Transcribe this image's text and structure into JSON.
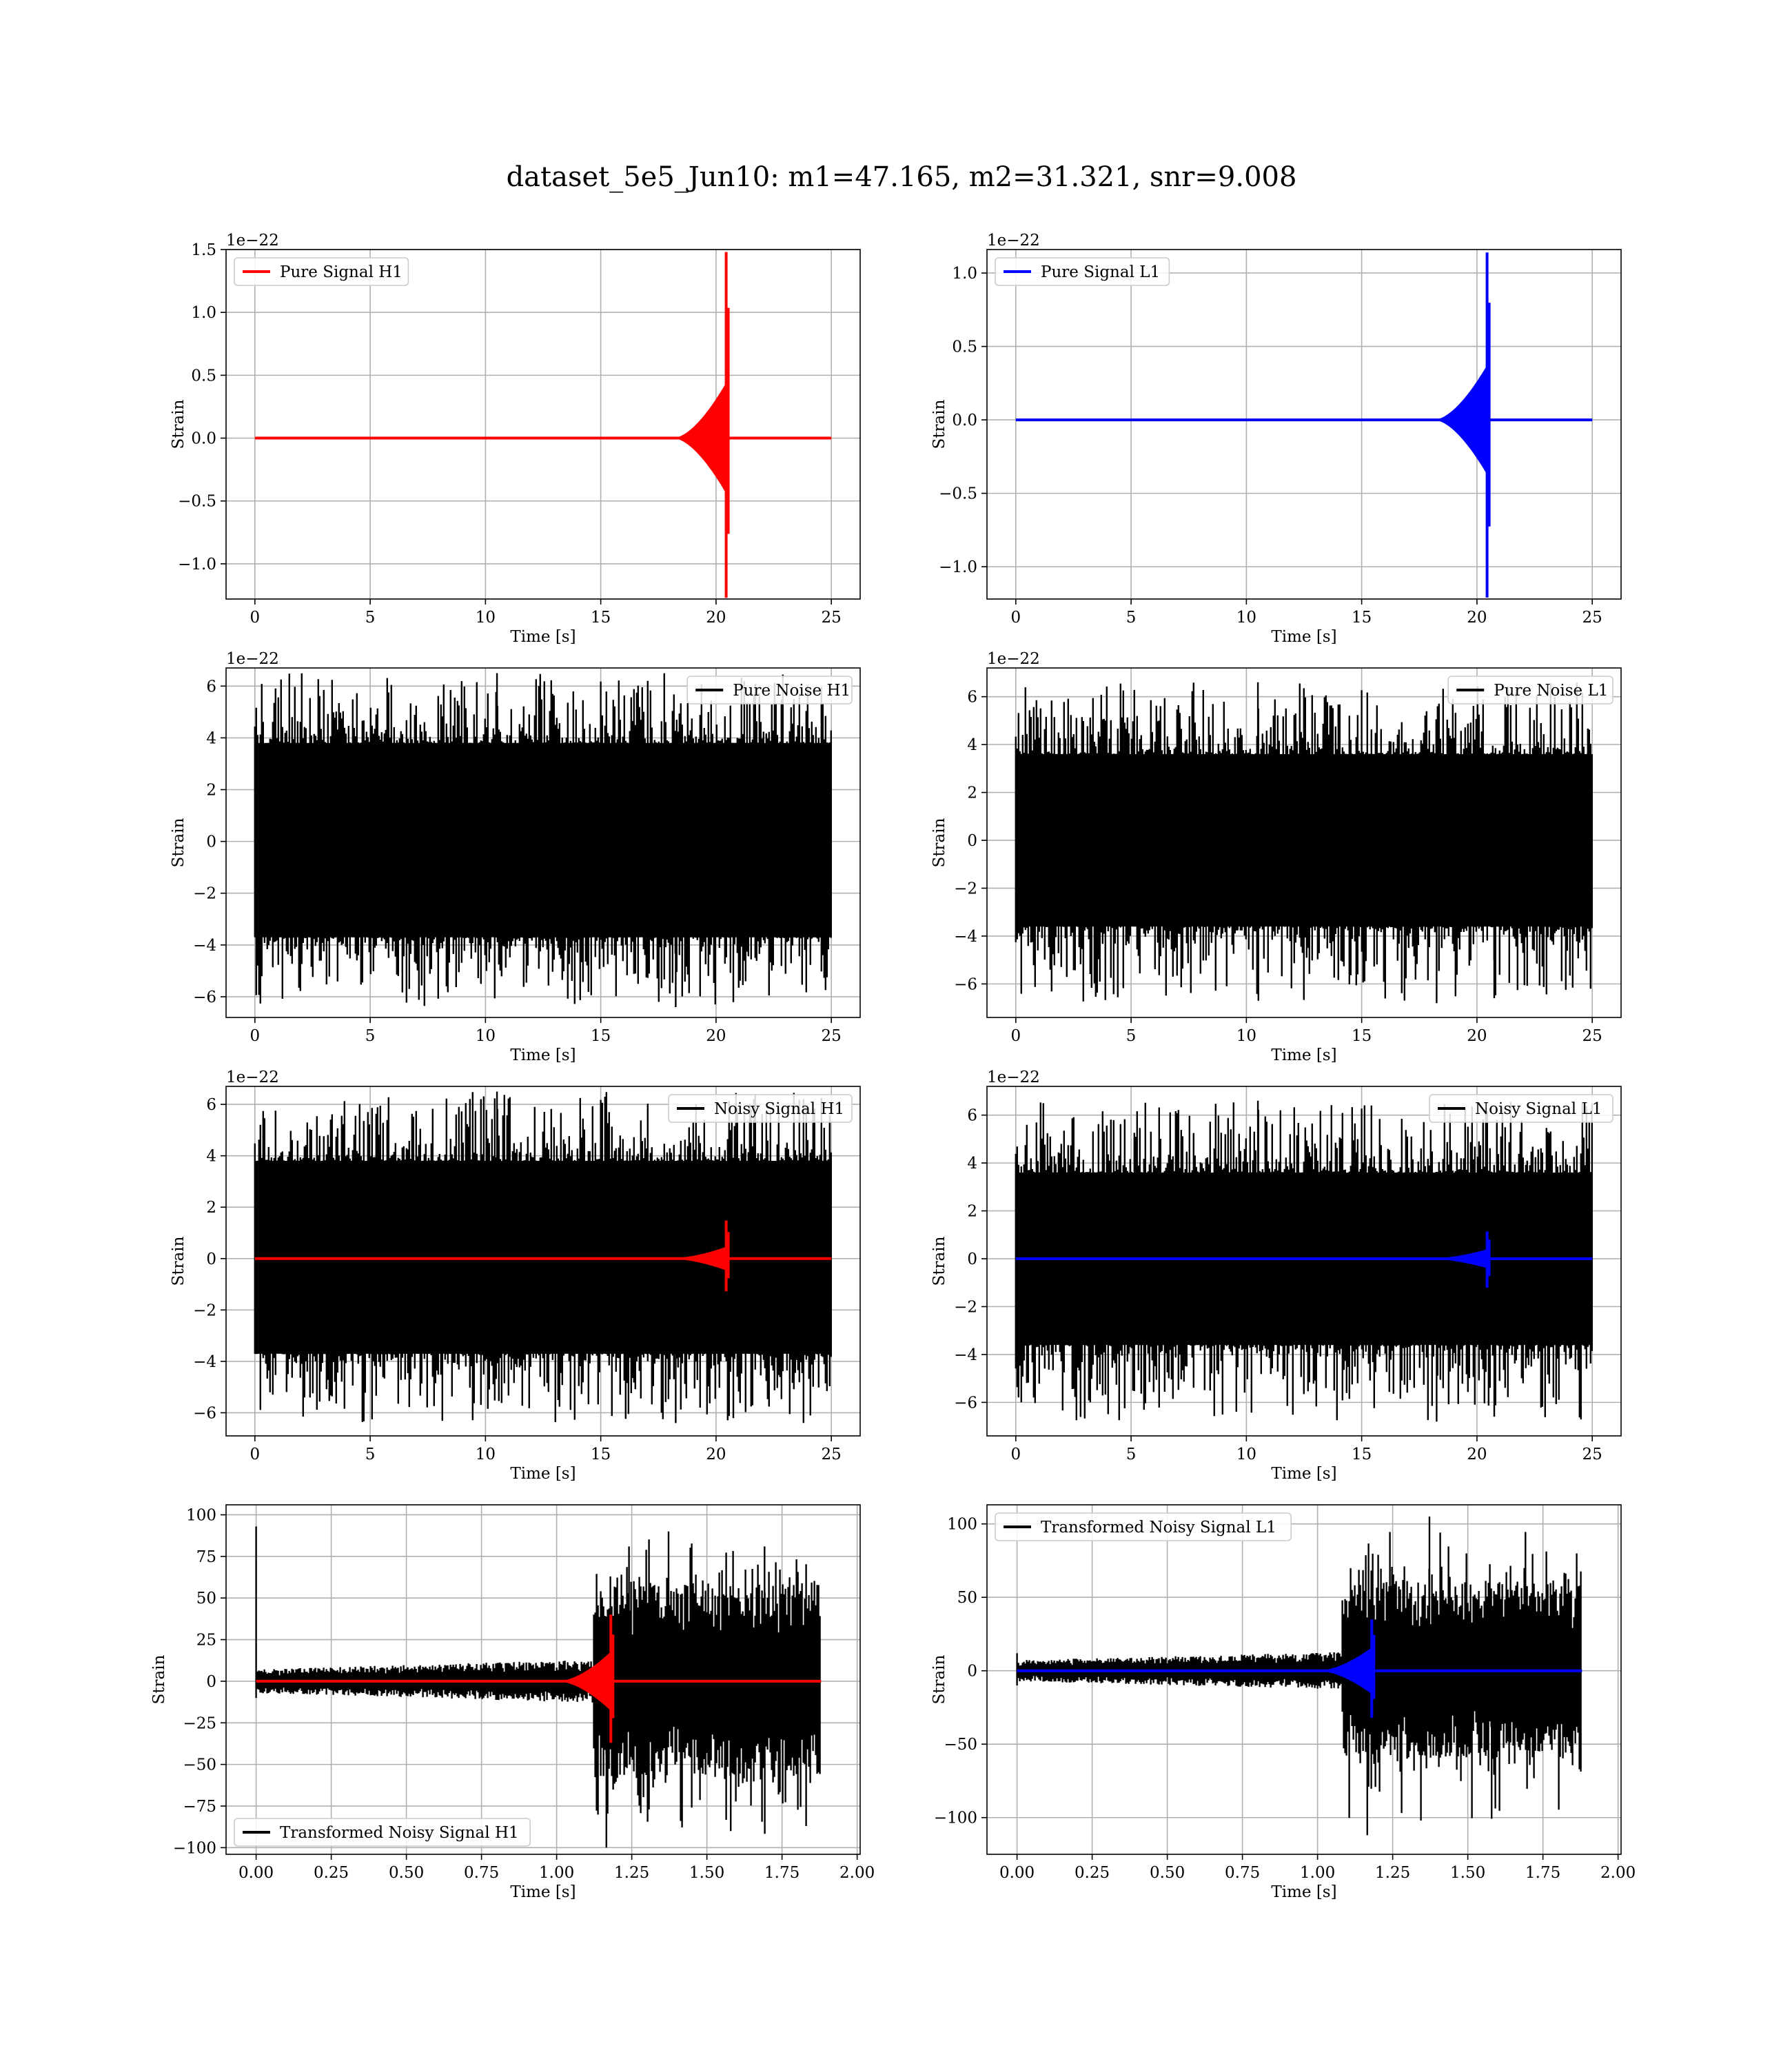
{
  "figure": {
    "title": "dataset_5e5_Jun10: m1=47.165, m2=31.321, snr=9.008"
  },
  "colors": {
    "red": "#ff0000",
    "blue": "#0000ff",
    "black": "#000000",
    "grid": "#b0b0b0"
  },
  "chart_data": [
    {
      "id": "pure-signal-h1",
      "type": "line",
      "grid": true,
      "xlabel": "Time [s]",
      "ylabel": "Strain",
      "offset_label": "1e−22",
      "xlim": [
        -1.25,
        26.25
      ],
      "ylim": [
        -1.28,
        1.5
      ],
      "xticks": [
        0,
        5,
        10,
        15,
        20,
        25
      ],
      "xticklabels": [
        "0",
        "5",
        "10",
        "15",
        "20",
        "25"
      ],
      "yticks": [
        -1.0,
        -0.5,
        0.0,
        0.5,
        1.0,
        1.5
      ],
      "yticklabels": [
        "−1.0",
        "−0.5",
        "0.0",
        "0.5",
        "1.0",
        "1.5"
      ],
      "legend": {
        "loc": "upper-left",
        "entries": [
          {
            "label": "Pure Signal H1",
            "color": "#ff0000"
          }
        ]
      },
      "series": [
        {
          "name": "Pure Signal H1",
          "color": "#ff0000",
          "chirp": {
            "x_start": 0,
            "x_end": 25,
            "merger": 20.5,
            "env_peak": 0.45,
            "spike_top": 1.48,
            "spike_bottom": -1.27
          }
        }
      ]
    },
    {
      "id": "pure-signal-l1",
      "type": "line",
      "grid": true,
      "xlabel": "Time [s]",
      "ylabel": "Strain",
      "offset_label": "1e−22",
      "xlim": [
        -1.25,
        26.25
      ],
      "ylim": [
        -1.22,
        1.16
      ],
      "xticks": [
        0,
        5,
        10,
        15,
        20,
        25
      ],
      "xticklabels": [
        "0",
        "5",
        "10",
        "15",
        "20",
        "25"
      ],
      "yticks": [
        -1.0,
        -0.5,
        0.0,
        0.5,
        1.0
      ],
      "yticklabels": [
        "−1.0",
        "−0.5",
        "0.0",
        "0.5",
        "1.0"
      ],
      "legend": {
        "loc": "upper-left",
        "entries": [
          {
            "label": "Pure Signal L1",
            "color": "#0000ff"
          }
        ]
      },
      "series": [
        {
          "name": "Pure Signal L1",
          "color": "#0000ff",
          "chirp": {
            "x_start": 0,
            "x_end": 25,
            "merger": 20.5,
            "env_peak": 0.38,
            "spike_top": 1.14,
            "spike_bottom": -1.21
          }
        }
      ]
    },
    {
      "id": "pure-noise-h1",
      "type": "line",
      "grid": true,
      "xlabel": "Time [s]",
      "ylabel": "Strain",
      "offset_label": "1e−22",
      "xlim": [
        -1.25,
        26.25
      ],
      "ylim": [
        -6.8,
        6.7
      ],
      "xticks": [
        0,
        5,
        10,
        15,
        20,
        25
      ],
      "xticklabels": [
        "0",
        "5",
        "10",
        "15",
        "20",
        "25"
      ],
      "yticks": [
        -6,
        -4,
        -2,
        0,
        2,
        4,
        6
      ],
      "yticklabels": [
        "−6",
        "−4",
        "−2",
        "0",
        "2",
        "4",
        "6"
      ],
      "legend": {
        "loc": "upper-right",
        "entries": [
          {
            "label": "Pure Noise H1",
            "color": "#000000"
          }
        ]
      },
      "series": [
        {
          "name": "Pure Noise H1",
          "color": "#000000",
          "noise": {
            "x_start": 0,
            "x_end": 25,
            "band_top": 3.8,
            "band_bottom": -3.7,
            "peak_max": 6.5,
            "peak_min": -6.4
          }
        }
      ]
    },
    {
      "id": "pure-noise-l1",
      "type": "line",
      "grid": true,
      "xlabel": "Time [s]",
      "ylabel": "Strain",
      "offset_label": "1e−22",
      "xlim": [
        -1.25,
        26.25
      ],
      "ylim": [
        -7.4,
        7.2
      ],
      "xticks": [
        0,
        5,
        10,
        15,
        20,
        25
      ],
      "xticklabels": [
        "0",
        "5",
        "10",
        "15",
        "20",
        "25"
      ],
      "yticks": [
        -6,
        -4,
        -2,
        0,
        2,
        4,
        6
      ],
      "yticklabels": [
        "−6",
        "−4",
        "−2",
        "0",
        "2",
        "4",
        "6"
      ],
      "legend": {
        "loc": "upper-right",
        "entries": [
          {
            "label": "Pure Noise L1",
            "color": "#000000"
          }
        ]
      },
      "series": [
        {
          "name": "Pure Noise L1",
          "color": "#000000",
          "noise": {
            "x_start": 0,
            "x_end": 25,
            "band_top": 3.6,
            "band_bottom": -3.6,
            "peak_max": 6.6,
            "peak_min": -6.8
          }
        }
      ]
    },
    {
      "id": "noisy-signal-h1",
      "type": "line",
      "grid": true,
      "xlabel": "Time [s]",
      "ylabel": "Strain",
      "offset_label": "1e−22",
      "xlim": [
        -1.25,
        26.25
      ],
      "ylim": [
        -6.9,
        6.7
      ],
      "xticks": [
        0,
        5,
        10,
        15,
        20,
        25
      ],
      "xticklabels": [
        "0",
        "5",
        "10",
        "15",
        "20",
        "25"
      ],
      "yticks": [
        -6,
        -4,
        -2,
        0,
        2,
        4,
        6
      ],
      "yticklabels": [
        "−6",
        "−4",
        "−2",
        "0",
        "2",
        "4",
        "6"
      ],
      "legend": {
        "loc": "upper-right",
        "entries": [
          {
            "label": "Noisy Signal H1",
            "color": "#000000"
          }
        ]
      },
      "series": [
        {
          "name": "Noisy Signal H1",
          "color": "#000000",
          "noise": {
            "x_start": 0,
            "x_end": 25,
            "band_top": 3.8,
            "band_bottom": -3.7,
            "peak_max": 6.5,
            "peak_min": -6.4
          }
        },
        {
          "color": "#ff0000",
          "chirp": {
            "x_start": 0,
            "x_end": 25,
            "merger": 20.5,
            "env_peak": 0.45,
            "spike_top": 1.48,
            "spike_bottom": -1.27
          }
        }
      ]
    },
    {
      "id": "noisy-signal-l1",
      "type": "line",
      "grid": true,
      "xlabel": "Time [s]",
      "ylabel": "Strain",
      "offset_label": "1e−22",
      "xlim": [
        -1.25,
        26.25
      ],
      "ylim": [
        -7.4,
        7.2
      ],
      "xticks": [
        0,
        5,
        10,
        15,
        20,
        25
      ],
      "xticklabels": [
        "0",
        "5",
        "10",
        "15",
        "20",
        "25"
      ],
      "yticks": [
        -6,
        -4,
        -2,
        0,
        2,
        4,
        6
      ],
      "yticklabels": [
        "−6",
        "−4",
        "−2",
        "0",
        "2",
        "4",
        "6"
      ],
      "legend": {
        "loc": "upper-right",
        "entries": [
          {
            "label": "Noisy Signal L1",
            "color": "#000000"
          }
        ]
      },
      "series": [
        {
          "name": "Noisy Signal L1",
          "color": "#000000",
          "noise": {
            "x_start": 0,
            "x_end": 25,
            "band_top": 3.6,
            "band_bottom": -3.6,
            "peak_max": 6.6,
            "peak_min": -6.8
          }
        },
        {
          "color": "#0000ff",
          "chirp": {
            "x_start": 0,
            "x_end": 25,
            "merger": 20.5,
            "env_peak": 0.38,
            "spike_top": 1.14,
            "spike_bottom": -1.21
          }
        }
      ]
    },
    {
      "id": "transformed-h1",
      "type": "line",
      "grid": true,
      "xlabel": "Time [s]",
      "ylabel": "Strain",
      "offset_label": "",
      "xlim": [
        -0.1,
        2.01
      ],
      "ylim": [
        -104,
        106
      ],
      "xticks": [
        0.0,
        0.25,
        0.5,
        0.75,
        1.0,
        1.25,
        1.5,
        1.75,
        2.0
      ],
      "xticklabels": [
        "0.00",
        "0.25",
        "0.50",
        "0.75",
        "1.00",
        "1.25",
        "1.50",
        "1.75",
        "2.00"
      ],
      "yticks": [
        -100,
        -75,
        -50,
        -25,
        0,
        25,
        50,
        75,
        100
      ],
      "yticklabels": [
        "−100",
        "−75",
        "−50",
        "−25",
        "0",
        "25",
        "50",
        "75",
        "100"
      ],
      "legend": {
        "loc": "lower-left",
        "entries": [
          {
            "label": "Transformed Noisy Signal H1",
            "color": "#000000"
          }
        ]
      },
      "series": [
        {
          "name": "Transformed Noisy Signal H1",
          "color": "#000000",
          "whitened": {
            "x_start": 0.0,
            "x_end": 1.88,
            "onset": 1.12,
            "early_amp": 12,
            "late_amp": 58,
            "peak_max": 90,
            "peak_min": -100,
            "spike_x": 0.0,
            "spike_y": 93
          }
        },
        {
          "color": "#ff0000",
          "chirp": {
            "x_start": 0.0,
            "x_end": 1.88,
            "merger": 1.185,
            "env_peak": 18,
            "spike_top": 40,
            "spike_bottom": -37
          }
        }
      ]
    },
    {
      "id": "transformed-l1",
      "type": "line",
      "grid": true,
      "xlabel": "Time [s]",
      "ylabel": "Strain",
      "offset_label": "",
      "xlim": [
        -0.1,
        2.01
      ],
      "ylim": [
        -125,
        113
      ],
      "xticks": [
        0.0,
        0.25,
        0.5,
        0.75,
        1.0,
        1.25,
        1.5,
        1.75,
        2.0
      ],
      "xticklabels": [
        "0.00",
        "0.25",
        "0.50",
        "0.75",
        "1.00",
        "1.25",
        "1.50",
        "1.75",
        "2.00"
      ],
      "yticks": [
        -100,
        -50,
        0,
        50,
        100
      ],
      "yticklabels": [
        "−100",
        "−50",
        "0",
        "50",
        "100"
      ],
      "legend": {
        "loc": "upper-left",
        "entries": [
          {
            "label": "Transformed Noisy Signal L1",
            "color": "#000000"
          }
        ]
      },
      "series": [
        {
          "name": "Transformed Noisy Signal L1",
          "color": "#000000",
          "whitened": {
            "x_start": 0.0,
            "x_end": 1.88,
            "onset": 1.08,
            "early_amp": 12,
            "late_amp": 60,
            "peak_max": 105,
            "peak_min": -112,
            "spike_x": 0.0,
            "spike_y": 12
          }
        },
        {
          "color": "#0000ff",
          "chirp": {
            "x_start": 0.0,
            "x_end": 1.88,
            "merger": 1.185,
            "env_peak": 16,
            "spike_top": 35,
            "spike_bottom": -32
          }
        }
      ]
    }
  ]
}
